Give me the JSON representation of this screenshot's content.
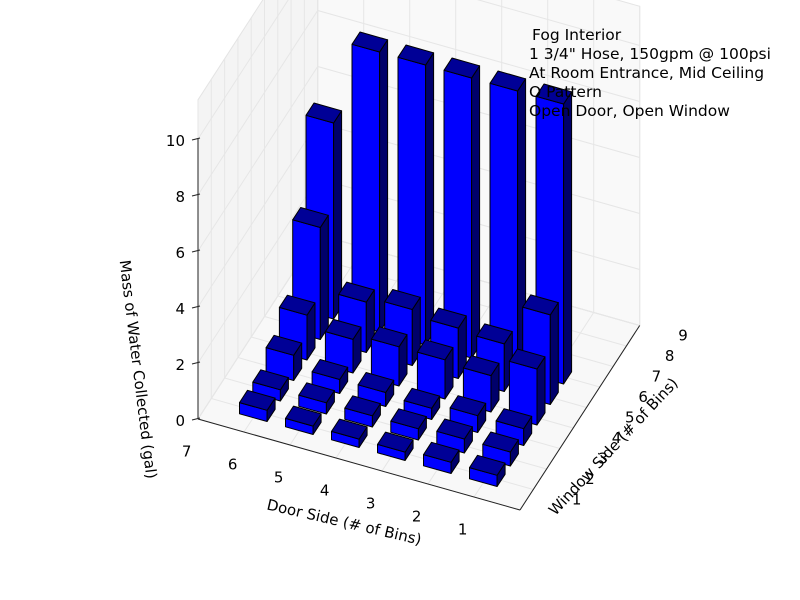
{
  "chart_data": {
    "type": "bar3d",
    "title_lines": [
      "Fog Interior",
      "1 3/4\" Hose, 150gpm @ 100psi",
      "At Room Entrance, Mid Ceiling",
      "O Pattern",
      "Open Door, Open Window"
    ],
    "xlabel": "Door Side (# of Bins)",
    "ylabel": "Window Side (# of Bins)",
    "zlabel": "Mass of Water Collected (gal)",
    "x_ticks": [
      "1",
      "2",
      "3",
      "4",
      "5",
      "6",
      "7"
    ],
    "y_ticks": [
      "1",
      "2",
      "3",
      "4",
      "5",
      "6",
      "7",
      "8",
      "9"
    ],
    "z_ticks": [
      "0",
      "2",
      "4",
      "6",
      "8",
      "10"
    ],
    "zlim": [
      0,
      10
    ],
    "bar_color": "#0000ff",
    "grid": true,
    "note": "values[door_index][window_index], door 1..6, window 1..6",
    "door_bins": [
      1,
      2,
      3,
      4,
      5,
      6
    ],
    "window_bins": [
      1,
      2,
      3,
      4,
      5,
      6
    ],
    "values": [
      [
        0.4,
        0.5,
        0.6,
        2.0,
        3.2,
        10.0
      ],
      [
        0.4,
        0.5,
        0.6,
        1.3,
        1.7,
        10.0
      ],
      [
        0.3,
        0.4,
        0.4,
        1.4,
        1.8,
        10.0
      ],
      [
        0.3,
        0.4,
        0.5,
        1.4,
        2.0,
        10.0
      ],
      [
        0.3,
        0.4,
        0.5,
        1.2,
        1.8,
        10.0
      ],
      [
        0.4,
        0.4,
        0.9,
        1.6,
        4.0,
        7.0
      ]
    ]
  }
}
